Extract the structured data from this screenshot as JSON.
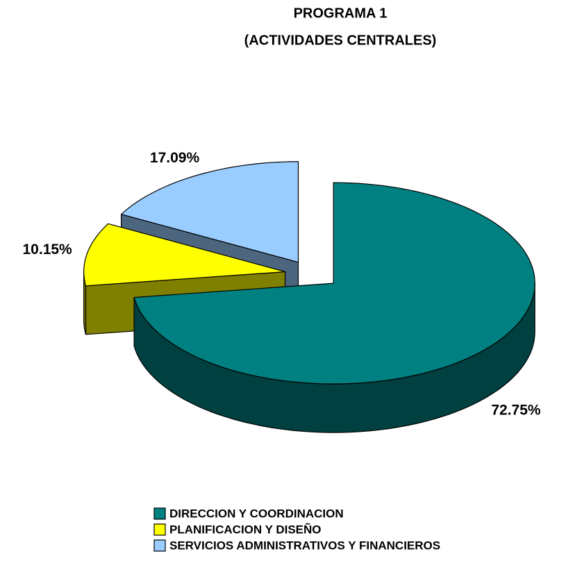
{
  "chart_data": {
    "type": "pie3d",
    "title": "PROGRAMA 1",
    "subtitle": "(ACTIVIDADES CENTRALES)",
    "categories": [
      "DIRECCION Y COORDINACION",
      "PLANIFICACION Y DISEÑO",
      "SERVICIOS ADMINISTRATIVOS Y FINANCIEROS"
    ],
    "values": [
      72.75,
      10.15,
      17.09
    ],
    "value_labels": [
      "72.75%",
      "10.15%",
      "17.09%"
    ],
    "colors": [
      "#008080",
      "#ffff00",
      "#99ccff"
    ],
    "legend": "bottom"
  }
}
